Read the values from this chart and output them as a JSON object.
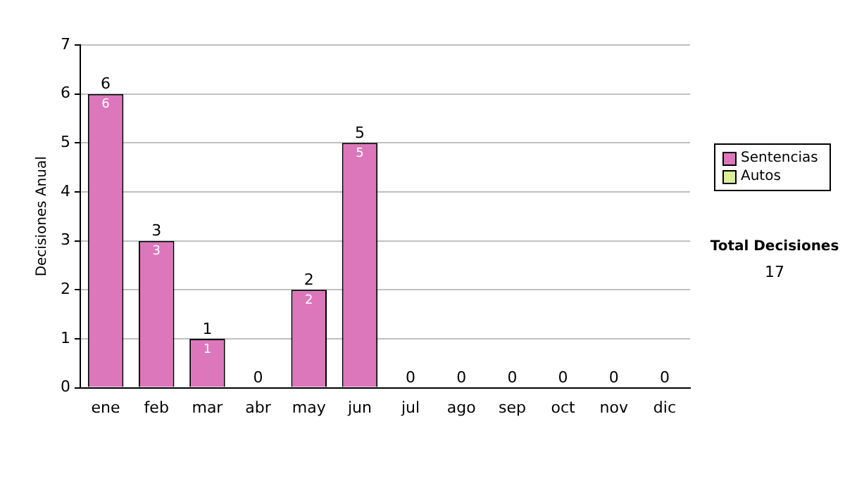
{
  "chart_data": {
    "type": "bar",
    "ylabel": "Decisiones Anual",
    "categories": [
      "ene",
      "feb",
      "mar",
      "abr",
      "may",
      "jun",
      "jul",
      "ago",
      "sep",
      "oct",
      "nov",
      "dic"
    ],
    "series": [
      {
        "name": "Sentencias",
        "color": "#dd77bb",
        "values": [
          6,
          3,
          1,
          0,
          2,
          5,
          0,
          0,
          0,
          0,
          0,
          0
        ],
        "value_labels": [
          "6",
          "3",
          "1",
          null,
          "2",
          "5",
          null,
          null,
          null,
          null,
          null,
          null
        ]
      },
      {
        "name": "Autos",
        "color": "#ddee99",
        "values": [
          0,
          0,
          0,
          0,
          0,
          0,
          0,
          0,
          0,
          0,
          0,
          0
        ]
      }
    ],
    "stacked": true,
    "totals": [
      "6",
      "3",
      "1",
      "0",
      "2",
      "5",
      "0",
      "0",
      "0",
      "0",
      "0",
      "0"
    ],
    "ylim": [
      0,
      7
    ],
    "yticks": [
      0,
      1,
      2,
      3,
      4,
      5,
      6,
      7
    ],
    "grid": "y",
    "legend": "right",
    "annotations": [
      "Total Decisiones",
      "17"
    ]
  }
}
